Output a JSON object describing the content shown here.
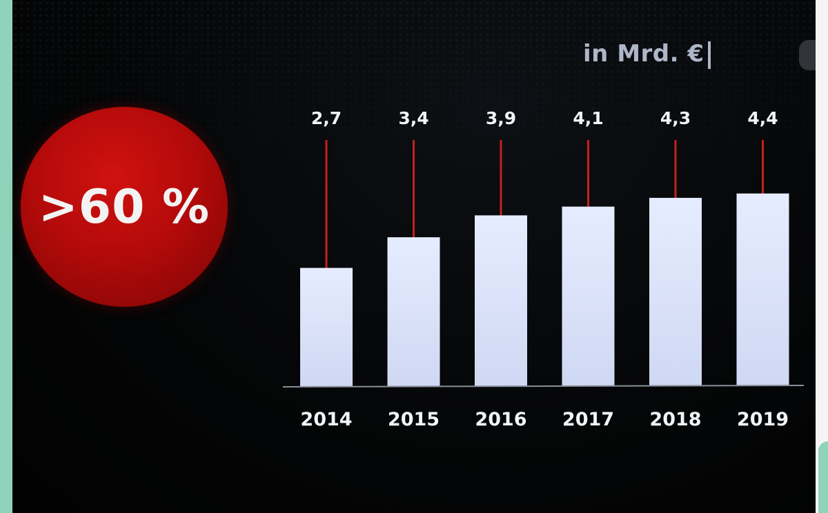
{
  "badge": {
    "text": ">60 %"
  },
  "unit": {
    "text": "in Mrd. €"
  },
  "colors": {
    "background": "#050607",
    "bar": "#dfe6ff",
    "leader": "#c8201a",
    "badge": "#b40a0a",
    "text": "#f2f4f8"
  },
  "chart_data": {
    "type": "bar",
    "categories": [
      "2014",
      "2015",
      "2016",
      "2017",
      "2018",
      "2019"
    ],
    "values": [
      2.7,
      3.4,
      3.9,
      4.1,
      4.3,
      4.4
    ],
    "value_labels": [
      "2,7",
      "3,4",
      "3,9",
      "4,1",
      "4,3",
      "4,4"
    ],
    "title": "",
    "xlabel": "",
    "ylabel": "in Mrd. €",
    "ylim": [
      0,
      5.4
    ],
    "grid": false,
    "legend": "none"
  }
}
